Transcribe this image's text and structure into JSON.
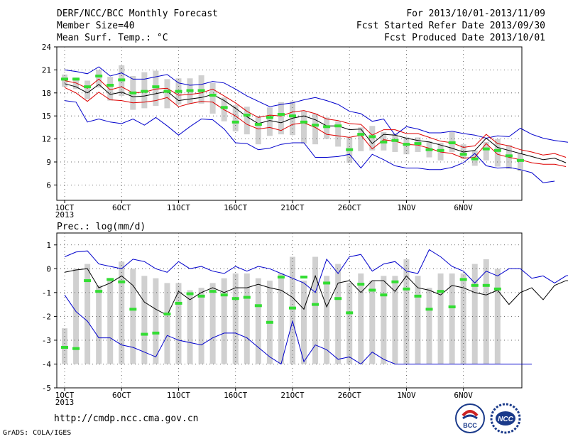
{
  "header": {
    "left": [
      "DERF/NCC/BCC Monthly Forecast",
      "Member Size=40",
      "Mean Surf. Temp.: °C"
    ],
    "right": [
      "For 2013/10/01-2013/11/09",
      "Fcst Started Refer Date 2013/09/30",
      "Fcst Produced Date 2013/10/01"
    ]
  },
  "footer": {
    "url": "http://cmdp.ncc.cma.gov.cn",
    "credit": "GrADS: COLA/IGES",
    "logo1": "BCC",
    "logo2": "NCC"
  },
  "colors": {
    "max_min": "#0000cc",
    "p_upper_lower": "#dd0000",
    "mean": "#000000",
    "median": "#33dd33",
    "box": "#d0d0d0"
  },
  "chart_data": [
    {
      "type": "line",
      "title": "Mean Surf. Temp.: °C",
      "xlabel": "",
      "ylabel": "",
      "x_ticks": [
        "1OCT\n2013",
        "6OCT",
        "11OCT",
        "16OCT",
        "21OCT",
        "26OCT",
        "1NOV",
        "6NOV"
      ],
      "ylim": [
        4,
        24
      ],
      "y_ticks": [
        6,
        9,
        12,
        15,
        18,
        21,
        24
      ],
      "grid": true,
      "days": 40,
      "series": [
        {
          "role": "max",
          "values": [
            21.0,
            20.8,
            20.5,
            21.4,
            20.2,
            20.6,
            19.8,
            19.8,
            20.1,
            20.4,
            19.3,
            19.0,
            19.1,
            19.5,
            19.3,
            18.5,
            17.6,
            16.9,
            16.2,
            16.5,
            16.7,
            17.1,
            17.4,
            17.0,
            16.5,
            15.6,
            15.3,
            14.3,
            14.6,
            12.5,
            13.6,
            13.3,
            12.8,
            12.8,
            13.0,
            12.7,
            12.5,
            12.1,
            12.4,
            12.3,
            13.4,
            12.6,
            12.1,
            11.8,
            11.6,
            11.4,
            11.3,
            11.1,
            10.8,
            10.8
          ]
        },
        {
          "role": "upper",
          "values": [
            19.6,
            19.3,
            18.6,
            19.8,
            18.4,
            18.8,
            18.0,
            18.1,
            18.5,
            18.6,
            17.7,
            17.8,
            18.0,
            18.5,
            17.6,
            16.7,
            15.6,
            14.8,
            15.1,
            15.0,
            15.5,
            15.7,
            15.3,
            14.6,
            14.4,
            14.0,
            13.9,
            12.5,
            13.2,
            13.2,
            12.7,
            12.7,
            12.2,
            11.7,
            11.5,
            10.9,
            11.1,
            12.6,
            11.4,
            11.1,
            10.6,
            10.3,
            9.9,
            10.1,
            9.6
          ]
        },
        {
          "role": "mean",
          "values": [
            19.2,
            18.8,
            18.0,
            19.1,
            17.8,
            18.1,
            17.5,
            17.6,
            17.9,
            18.2,
            17.0,
            17.2,
            17.4,
            17.8,
            17.0,
            16.0,
            14.9,
            14.0,
            14.4,
            14.1,
            14.7,
            15.0,
            14.5,
            13.7,
            13.7,
            13.2,
            13.3,
            11.4,
            12.6,
            12.5,
            12.1,
            11.8,
            11.6,
            11.2,
            10.8,
            10.3,
            10.5,
            12.1,
            10.9,
            10.5,
            10.1,
            9.7,
            9.3,
            9.5,
            8.9
          ]
        },
        {
          "role": "lower",
          "values": [
            18.7,
            18.0,
            16.9,
            18.1,
            17.1,
            17.0,
            16.7,
            16.8,
            17.0,
            17.4,
            16.2,
            16.6,
            16.9,
            16.8,
            15.8,
            15.0,
            13.9,
            13.3,
            13.5,
            13.1,
            13.9,
            14.1,
            13.5,
            12.6,
            12.4,
            12.2,
            12.5,
            10.7,
            11.9,
            11.7,
            11.3,
            11.2,
            10.8,
            10.3,
            10.1,
            9.5,
            9.6,
            11.4,
            10.0,
            9.6,
            9.3,
            8.9,
            8.7,
            8.7,
            8.4
          ]
        },
        {
          "role": "min",
          "values": [
            17.0,
            16.8,
            14.2,
            14.6,
            14.2,
            14.0,
            14.6,
            13.8,
            14.8,
            13.7,
            12.5,
            13.6,
            14.6,
            14.5,
            13.3,
            11.5,
            11.4,
            10.6,
            10.8,
            11.3,
            11.5,
            11.5,
            9.6,
            9.6,
            9.7,
            10.0,
            8.2,
            10.0,
            9.3,
            8.5,
            8.2,
            8.2,
            8.0,
            8.0,
            8.3,
            8.9,
            10.1,
            8.5,
            8.2,
            8.3,
            8.0,
            7.6,
            6.3,
            6.5
          ]
        },
        {
          "role": "median",
          "values": [
            19.8,
            19.8,
            18.8,
            20.2,
            19.0,
            19.7,
            18.0,
            18.2,
            18.8,
            18.2,
            18.2,
            18.3,
            18.3,
            17.7,
            16.1,
            14.2,
            15.1,
            13.9,
            14.8,
            15.2,
            15.0,
            14.2,
            13.8,
            13.6,
            13.7,
            10.6,
            12.6,
            12.3,
            11.6,
            11.8,
            11.3,
            11.4,
            10.6,
            10.5,
            11.5,
            10.0,
            9.4,
            10.7,
            10.5,
            9.8,
            9.2
          ]
        },
        {
          "role": "box",
          "low": [
            18.8,
            18.5,
            17.2,
            18.7,
            17.0,
            17.6,
            15.8,
            16.0,
            16.3,
            16.0,
            16.5,
            16.6,
            16.6,
            15.3,
            14.3,
            13.0,
            12.6,
            11.3,
            12.4,
            12.6,
            12.5,
            11.4,
            11.3,
            12.0,
            11.0,
            8.9,
            10.4,
            10.5,
            10.5,
            10.3,
            10.0,
            10.3,
            9.6,
            9.2,
            10.3,
            9.4,
            8.5,
            9.2,
            8.4,
            8.1,
            7.8
          ],
          "high": [
            20.4,
            20.0,
            19.6,
            21.0,
            20.1,
            21.6,
            20.2,
            20.7,
            20.9,
            19.8,
            19.9,
            19.9,
            20.3,
            19.3,
            17.4,
            16.4,
            16.2,
            15.0,
            16.1,
            16.8,
            16.9,
            15.6,
            15.3,
            14.8,
            14.3,
            12.2,
            13.5,
            13.7,
            12.9,
            12.7,
            12.2,
            12.2,
            11.7,
            11.5,
            12.9,
            11.3,
            10.5,
            11.6,
            12.0,
            11.2,
            10.1
          ]
        }
      ]
    },
    {
      "type": "line",
      "title": "Prec.: log(mm/d)",
      "xlabel": "",
      "ylabel": "",
      "x_ticks": [
        "1OCT\n2013",
        "6OCT",
        "11OCT",
        "16OCT",
        "21OCT",
        "26OCT",
        "1NOV",
        "6NOV"
      ],
      "ylim": [
        -5,
        1.5
      ],
      "y_ticks": [
        -5,
        -4,
        -3,
        -2,
        -1,
        0,
        1
      ],
      "grid": true,
      "days": 40,
      "series": [
        {
          "role": "max",
          "values": [
            0.5,
            0.7,
            0.75,
            0.2,
            0.1,
            0.0,
            0.4,
            0.3,
            0.0,
            -0.15,
            0.3,
            0.0,
            0.1,
            -0.1,
            -0.2,
            0.1,
            -0.1,
            0.1,
            0.0,
            -0.2,
            -0.4,
            -0.6,
            -1.0,
            0.4,
            -0.2,
            0.5,
            0.6,
            -0.1,
            0.2,
            0.3,
            -0.1,
            -0.2,
            0.8,
            0.5,
            0.1,
            -0.1,
            -0.6,
            -0.1,
            -0.3,
            0.0,
            0.0,
            -0.4,
            -0.3,
            -0.6,
            -0.3,
            -0.2,
            -0.3,
            0.1,
            0.2
          ]
        },
        {
          "role": "mean",
          "values": [
            -0.15,
            -0.05,
            0.0,
            -0.8,
            -0.6,
            -0.3,
            -0.7,
            -1.4,
            -1.7,
            -1.95,
            -0.95,
            -1.3,
            -1.0,
            -0.8,
            -1.0,
            -0.8,
            -0.8,
            -0.65,
            -0.8,
            -0.9,
            -1.2,
            -1.7,
            -0.3,
            -1.6,
            -0.6,
            -0.5,
            -1.0,
            -0.5,
            -0.5,
            -0.95,
            -0.3,
            -0.8,
            -0.9,
            -1.1,
            -0.7,
            -0.8,
            -1.0,
            -1.1,
            -0.9,
            -1.5,
            -1.0,
            -0.8,
            -1.3,
            -0.7,
            -0.5,
            -0.5
          ]
        },
        {
          "role": "min",
          "values": [
            -1.1,
            -1.8,
            -2.2,
            -2.9,
            -2.9,
            -3.2,
            -3.3,
            -3.5,
            -3.7,
            -2.8,
            -3.0,
            -3.1,
            -3.2,
            -2.9,
            -2.7,
            -2.7,
            -2.9,
            -3.3,
            -3.7,
            -4.0,
            -2.2,
            -3.9,
            -3.2,
            -3.4,
            -3.8,
            -3.7,
            -4.0,
            -3.5,
            -3.8,
            -4.0,
            -4.0,
            -4.0,
            -4.0,
            -4.0,
            -4.0,
            -4.0,
            -4.0,
            -4.0,
            -4.0,
            -4.0,
            -4.0,
            -4.0
          ]
        },
        {
          "role": "median",
          "values": [
            -3.3,
            -3.35,
            -0.5,
            -0.95,
            -0.45,
            -0.55,
            -1.7,
            -2.75,
            -2.7,
            -1.9,
            -1.45,
            -1.05,
            -1.15,
            -0.95,
            -1.1,
            -1.25,
            -1.2,
            -1.55,
            -2.25,
            -0.35,
            -1.65,
            -0.35,
            -1.5,
            -0.6,
            -1.25,
            -1.85,
            -0.65,
            -0.9,
            -1.1,
            -0.55,
            -0.85,
            -1.15,
            -1.7,
            -0.95,
            -1.6,
            -0.45,
            -0.7,
            -0.7,
            -0.85
          ]
        },
        {
          "role": "box",
          "low": [
            -4.0,
            -4.0,
            -4.0,
            -4.0,
            -4.0,
            -4.0,
            -4.0,
            -4.0,
            -4.0,
            -4.0,
            -4.0,
            -4.0,
            -4.0,
            -4.0,
            -4.0,
            -4.0,
            -4.0,
            -4.0,
            -4.0,
            -4.0,
            -4.0,
            -4.0,
            -4.0,
            -4.0,
            -4.0,
            -4.0,
            -4.0,
            -4.0,
            -4.0,
            -4.0,
            -4.0,
            -4.0,
            -4.0,
            -4.0,
            -4.0,
            -4.0,
            -4.0,
            -4.0,
            -4.0
          ],
          "high": [
            -2.5,
            0.0,
            0.2,
            -0.7,
            -0.4,
            0.3,
            0.0,
            -0.3,
            -0.4,
            -0.6,
            -0.6,
            -0.9,
            -0.8,
            -0.6,
            -0.4,
            -0.2,
            -0.2,
            -0.4,
            -0.5,
            -0.2,
            0.5,
            -0.5,
            0.5,
            -0.3,
            0.2,
            -0.6,
            -0.2,
            -0.5,
            -0.3,
            -0.3,
            0.4,
            -0.3,
            -0.8,
            -0.2,
            -0.2,
            -0.2,
            0.2,
            0.4,
            0.0
          ]
        }
      ]
    }
  ]
}
